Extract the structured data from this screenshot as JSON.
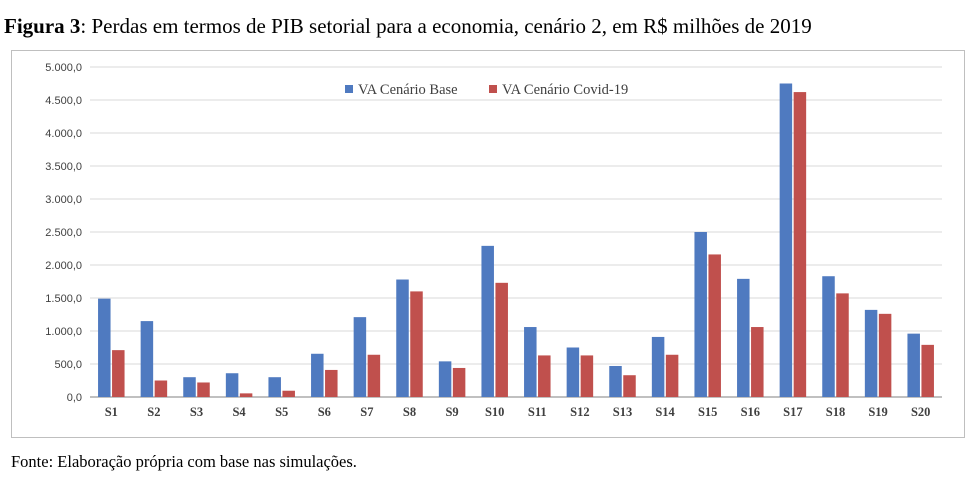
{
  "figure": {
    "label": "Figura 3",
    "title_rest": ": Perdas em termos de PIB setorial para a economia, cenário 2, em R$ milhões de 2019",
    "source": "Fonte: Elaboração própria com base nas simulações."
  },
  "colors": {
    "base": "#4f7ac0",
    "covid": "#c0504d",
    "grid": "#d9d9d9",
    "axis": "#808080"
  },
  "chart_data": {
    "type": "bar",
    "title": "Perdas em termos de PIB setorial para a economia, cenário 2, em R$ milhões de 2019",
    "xlabel": "",
    "ylabel": "",
    "ylim": [
      0,
      5000
    ],
    "yticks": [
      0,
      500,
      1000,
      1500,
      2000,
      2500,
      3000,
      3500,
      4000,
      4500,
      5000
    ],
    "ytick_labels": [
      "0,0",
      "500,0",
      "1.000,0",
      "1.500,0",
      "2.000,0",
      "2.500,0",
      "3.000,0",
      "3.500,0",
      "4.000,0",
      "4.500,0",
      "5.000,0"
    ],
    "grid": true,
    "legend_position": "top-center",
    "categories": [
      "S1",
      "S2",
      "S3",
      "S4",
      "S5",
      "S6",
      "S7",
      "S8",
      "S9",
      "S10",
      "S11",
      "S12",
      "S13",
      "S14",
      "S15",
      "S16",
      "S17",
      "S18",
      "S19",
      "S20"
    ],
    "series": [
      {
        "name": "VA Cenário Base",
        "values": [
          1490,
          1150,
          300,
          360,
          300,
          655,
          1210,
          1780,
          540,
          2290,
          1060,
          750,
          470,
          910,
          2500,
          1790,
          4750,
          1830,
          1320,
          960
        ]
      },
      {
        "name": "VA Cenário Covid-19",
        "values": [
          710,
          250,
          220,
          55,
          95,
          410,
          640,
          1600,
          440,
          1730,
          630,
          630,
          330,
          640,
          2160,
          1060,
          4620,
          1570,
          1260,
          790
        ]
      }
    ]
  }
}
